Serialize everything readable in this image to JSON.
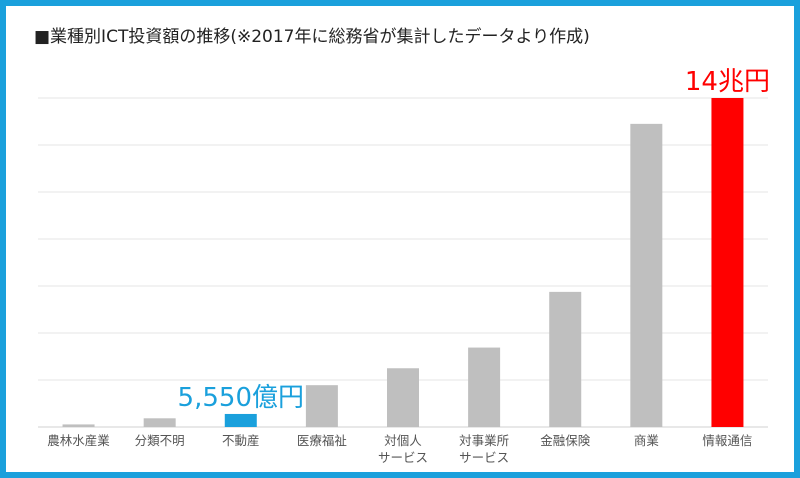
{
  "title": "■業種別ICT投資額の推移(※2017年に総務省が集計したデータより作成)",
  "colors": {
    "frame": "#1aa0dc",
    "bar_default": "#bfbfbf",
    "bar_highlight_blue": "#1aa0dc",
    "bar_highlight_red": "#ff0000",
    "label_default": "#555555",
    "gridline": "#e6e6e6"
  },
  "chart_data": {
    "type": "bar",
    "title": "■業種別ICT投資額の推移(※2017年に総務省が集計したデータより作成)",
    "xlabel": "",
    "ylabel": "",
    "grid": true,
    "unit": "億円",
    "ylim": [
      0,
      140000
    ],
    "categories": [
      [
        "農林水産業"
      ],
      [
        "分類不明"
      ],
      [
        "不動産"
      ],
      [
        "医療福祉"
      ],
      [
        "対個人",
        "サービス"
      ],
      [
        "対事業所",
        "サービス"
      ],
      [
        "金融保険"
      ],
      [
        "商業"
      ],
      [
        "情報通信"
      ]
    ],
    "values": [
      1100,
      3700,
      5550,
      17800,
      25000,
      33800,
      57500,
      129000,
      140000
    ],
    "highlight": [
      {
        "index": 2,
        "color": "#1aa0dc"
      },
      {
        "index": 8,
        "color": "#ff0000"
      }
    ],
    "annotations": [
      {
        "index": 2,
        "text": "5,550億円",
        "color": "#1aa0dc"
      },
      {
        "index": 8,
        "text": "14兆円",
        "color": "#ff0000"
      }
    ]
  }
}
